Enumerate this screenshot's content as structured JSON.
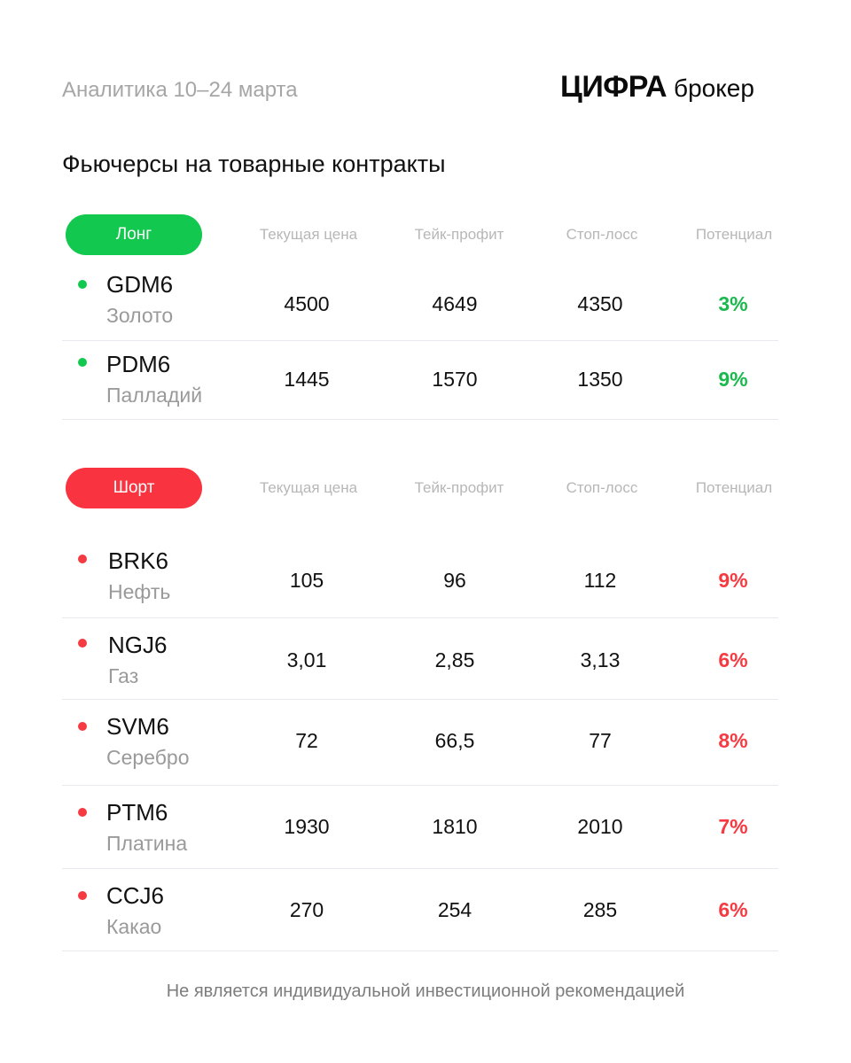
{
  "header": {
    "subtitle": "Аналитика 10–24 марта",
    "logo_main": "ЦИФРА",
    "logo_sub": "брокер"
  },
  "title": "Фьючерсы на товарные контракты",
  "columns": {
    "price": "Текущая цена",
    "take_profit": "Тейк-профит",
    "stop_loss": "Стоп-лосс",
    "potential": "Потенциал"
  },
  "long": {
    "label": "Лонг",
    "color": "#12c84e",
    "rows": [
      {
        "ticker": "GDM6",
        "asset": "Золото",
        "price": "4500",
        "take_profit": "4649",
        "stop_loss": "4350",
        "potential": "3%"
      },
      {
        "ticker": "PDM6",
        "asset": "Палладий",
        "price": "1445",
        "take_profit": "1570",
        "stop_loss": "1350",
        "potential": "9%"
      }
    ]
  },
  "short": {
    "label": "Шорт",
    "color": "#f9333f",
    "rows": [
      {
        "ticker": "BRK6",
        "asset": "Нефть",
        "price": "105",
        "take_profit": "96",
        "stop_loss": "112",
        "potential": "9%"
      },
      {
        "ticker": "NGJ6",
        "asset": "Газ",
        "price": "3,01",
        "take_profit": "2,85",
        "stop_loss": "3,13",
        "potential": "6%"
      },
      {
        "ticker": "SVM6",
        "asset": "Серебро",
        "price": "72",
        "take_profit": "66,5",
        "stop_loss": "77",
        "potential": "8%"
      },
      {
        "ticker": "PTM6",
        "asset": "Платина",
        "price": "1930",
        "take_profit": "1810",
        "stop_loss": "2010",
        "potential": "7%"
      },
      {
        "ticker": "CCJ6",
        "asset": "Какао",
        "price": "270",
        "take_profit": "254",
        "stop_loss": "285",
        "potential": "6%"
      }
    ]
  },
  "footer": "Не является индивидуальной инвестиционной рекомендацией"
}
